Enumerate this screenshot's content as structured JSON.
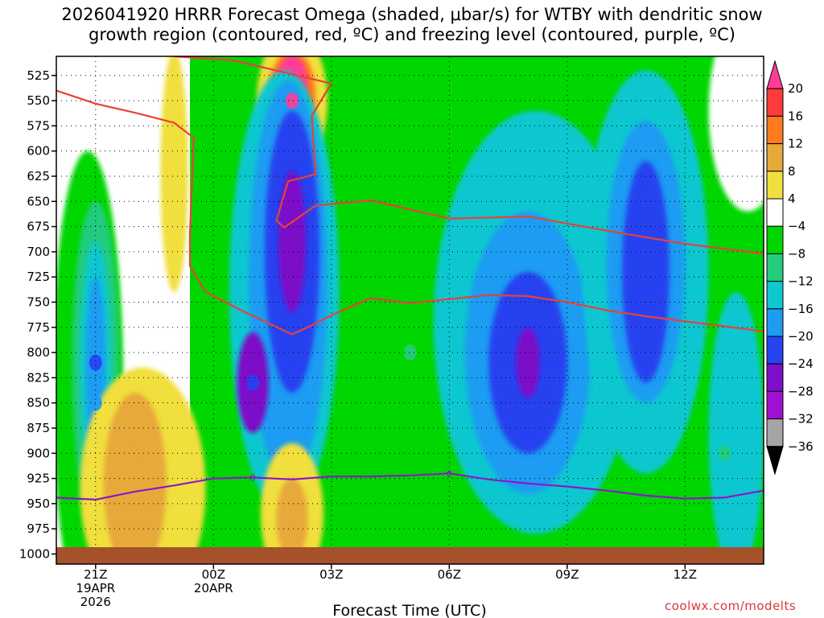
{
  "title": {
    "line1": "2026041920 HRRR Forecast Omega (shaded, μbar/s) for WTBY with dendritic snow",
    "line2": "growth region (contoured, red, ºC) and freezing level (contoured, purple, ºC)"
  },
  "credit": "coolwx.com/modelts",
  "chart_data": {
    "type": "heatmap",
    "title": "2026041920 HRRR Forecast Omega (shaded, μbar/s) for WTBY with dendritic snow growth region (contoured, red, ºC) and freezing level (contoured, purple, ºC)",
    "xlabel": "Forecast Time (UTC)",
    "ylabel": "",
    "xlim": [
      -1,
      17
    ],
    "ylim": [
      1010,
      506
    ],
    "x_ticks": [
      {
        "hour": 0,
        "label": "21Z",
        "date": "19APR",
        "year": "2026"
      },
      {
        "hour": 3,
        "label": "00Z",
        "date": "20APR"
      },
      {
        "hour": 6,
        "label": "03Z"
      },
      {
        "hour": 9,
        "label": "06Z"
      },
      {
        "hour": 12,
        "label": "09Z"
      },
      {
        "hour": 15,
        "label": "12Z"
      }
    ],
    "y_ticks": [
      525,
      550,
      575,
      600,
      625,
      650,
      675,
      700,
      725,
      750,
      775,
      800,
      825,
      850,
      875,
      900,
      925,
      950,
      975,
      1000
    ],
    "grid": true,
    "colorbar": {
      "labels": [
        "20",
        "16",
        "12",
        "8",
        "4",
        "−4",
        "−8",
        "−12",
        "−16",
        "−20",
        "−24",
        "−28",
        "−32",
        "−36"
      ],
      "colors": [
        "#ff3d97",
        "#ff3b3b",
        "#ff7a1e",
        "#e8a93a",
        "#f0df3d",
        "#ffffff",
        "#00d600",
        "#24cc7e",
        "#10c7d0",
        "#1f9cf2",
        "#2643f0",
        "#7b10c8",
        "#a010d0",
        "#a5a5a5",
        "#000000"
      ]
    },
    "omega_cells": [
      {
        "x": 0.0,
        "p": 810,
        "value": -20
      },
      {
        "x": 0.0,
        "p": 850,
        "value": -16
      },
      {
        "x": 1.0,
        "p": 900,
        "value": 8
      },
      {
        "x": 2.0,
        "p": 600,
        "value": 4
      },
      {
        "x": 4.0,
        "p": 830,
        "value": -20
      },
      {
        "x": 5.0,
        "p": 550,
        "value": 20
      },
      {
        "x": 5.0,
        "p": 690,
        "value": -24
      },
      {
        "x": 5.0,
        "p": 970,
        "value": 8
      },
      {
        "x": 8.0,
        "p": 800,
        "value": -8
      },
      {
        "x": 11.0,
        "p": 800,
        "value": -24
      },
      {
        "x": 14.0,
        "p": 700,
        "value": -20
      },
      {
        "x": 16.0,
        "p": 900,
        "value": -8
      }
    ],
    "series": [
      {
        "name": "dendritic snow growth region (-12 ºC)",
        "color": "#e8413a",
        "x": [
          -1,
          0,
          1,
          2,
          2.5,
          2.4,
          2.4,
          2.8,
          3.8,
          5.0,
          5.5,
          6.0,
          7.0,
          8.0,
          9.0,
          10.0,
          11.0,
          12.0,
          13.0,
          14.0,
          15.0,
          16.0,
          17.0
        ],
        "y": [
          540,
          553,
          562,
          572,
          587,
          682,
          714,
          740,
          760,
          782,
          773,
          763,
          746,
          751,
          747,
          743,
          744,
          750,
          758,
          764,
          769,
          774,
          779
        ]
      },
      {
        "name": "dendritic snow growth region (-18 ºC)",
        "color": "#e8413a",
        "x": [
          2.0,
          3.5,
          6.0,
          5.5,
          5.6,
          4.9,
          4.6,
          4.8,
          5.6,
          7.0,
          9.0,
          11.0,
          13.0,
          15.0,
          17.0
        ],
        "y": [
          506,
          510,
          533,
          565,
          623,
          630,
          669,
          676,
          654,
          649,
          667,
          665,
          679,
          692,
          702
        ]
      },
      {
        "name": "freezing level (0 ºC)",
        "color": "#8b18c7",
        "x": [
          -1,
          0,
          1,
          2,
          3,
          4,
          5,
          6,
          7,
          8,
          9,
          10,
          11,
          12,
          13,
          14,
          15,
          16,
          17
        ],
        "y": [
          944,
          946,
          938,
          932,
          925,
          924,
          926,
          923,
          923,
          922,
          920,
          926,
          930,
          933,
          937,
          942,
          945,
          944,
          937
        ]
      }
    ]
  }
}
